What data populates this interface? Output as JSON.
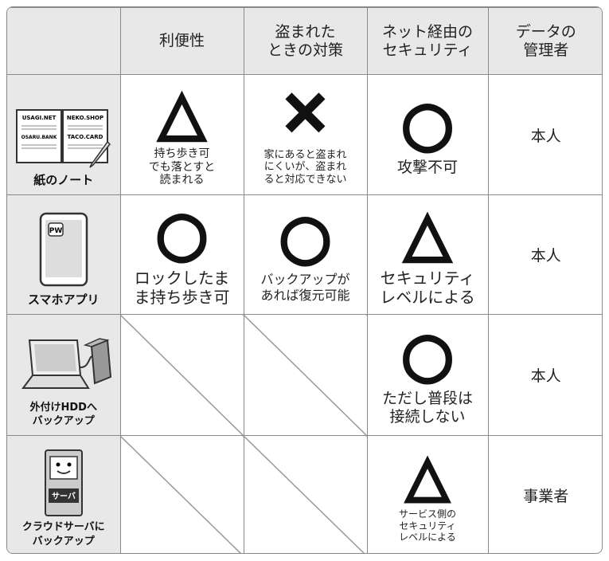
{
  "header": [
    "利便性",
    "盗まれた\nときの対策",
    "ネット経由の\nセキュリティ",
    "データの\n管理者"
  ],
  "rows": [
    {
      "label": "紙のノート",
      "icon_texts": [
        "USAGI.NET",
        "NEKO.SHOP",
        "OSARU.BANK",
        "TACO.CARD"
      ],
      "cells": [
        {
          "symbol": "△",
          "note": "持ち歩き可\nでも落とすと\n読まれる"
        },
        {
          "symbol": "✕",
          "note": "家にあると盗まれ\nにくいが、盗まれ\nると対応できない"
        },
        {
          "symbol": "○",
          "note": "攻撃不可"
        }
      ],
      "manager": "本人"
    },
    {
      "label": "スマホアプリ",
      "icon_texts": [
        "PW"
      ],
      "cells": [
        {
          "symbol": "○",
          "note": "ロックしたま\nま持ち歩き可"
        },
        {
          "symbol": "○",
          "note": "バックアップが\nあれば復元可能"
        },
        {
          "symbol": "△",
          "note": "セキュリティ\nレベルによる"
        }
      ],
      "manager": "本人"
    },
    {
      "label": "外付けHDDへ\nバックアップ",
      "cells": [
        null,
        null,
        {
          "symbol": "○",
          "note": "ただし普段は\n接続しない"
        }
      ],
      "manager": "本人"
    },
    {
      "label": "クラウドサーバに\nバックアップ",
      "icon_texts": [
        "サーバ"
      ],
      "cells": [
        null,
        null,
        {
          "symbol": "△",
          "note": "サービス側の\nセキュリティ\nレベルによる"
        }
      ],
      "manager": "事業者"
    }
  ]
}
